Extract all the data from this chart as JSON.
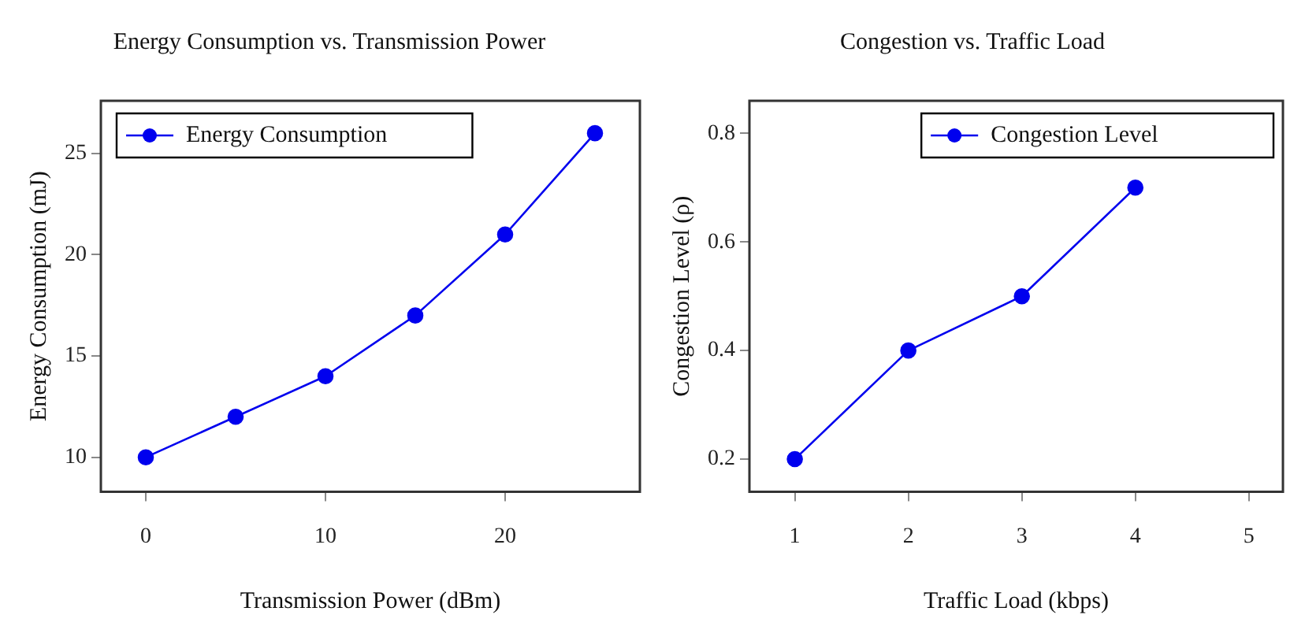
{
  "chart_data": [
    {
      "type": "line",
      "title": "Energy Consumption vs. Transmission Power",
      "xlabel": "Transmission Power (dBm)",
      "ylabel": "Energy Consumption (mJ)",
      "x": [
        0,
        5,
        10,
        15,
        20,
        25
      ],
      "series": [
        {
          "name": "Energy Consumption",
          "color": "#0000ee",
          "values": [
            10,
            12,
            14,
            17,
            21,
            26
          ]
        }
      ],
      "xlim": [
        -2.5,
        27.5
      ],
      "xticks": [
        0,
        10,
        20
      ],
      "ylim": [
        8.3,
        27.6
      ],
      "yticks": [
        10,
        15,
        20,
        25
      ],
      "grid": false,
      "legend": "top left",
      "marker": "circle",
      "line_style": "solid"
    },
    {
      "type": "line",
      "title": "Congestion vs. Traffic Load",
      "xlabel": "Traffic Load (kbps)",
      "ylabel": "Congestion Level (ρ)",
      "x": [
        1,
        2,
        3,
        4
      ],
      "series": [
        {
          "name": "Congestion Level",
          "color": "#0000ee",
          "values": [
            0.2,
            0.4,
            0.5,
            0.7
          ]
        }
      ],
      "xlim": [
        0.6,
        5.3
      ],
      "xticks": [
        1,
        2,
        3,
        4,
        5
      ],
      "ylim": [
        0.14,
        0.86
      ],
      "yticks": [
        0.2,
        0.4,
        0.6,
        0.8
      ],
      "grid": false,
      "legend": "top right",
      "marker": "circle",
      "line_style": "solid"
    }
  ]
}
